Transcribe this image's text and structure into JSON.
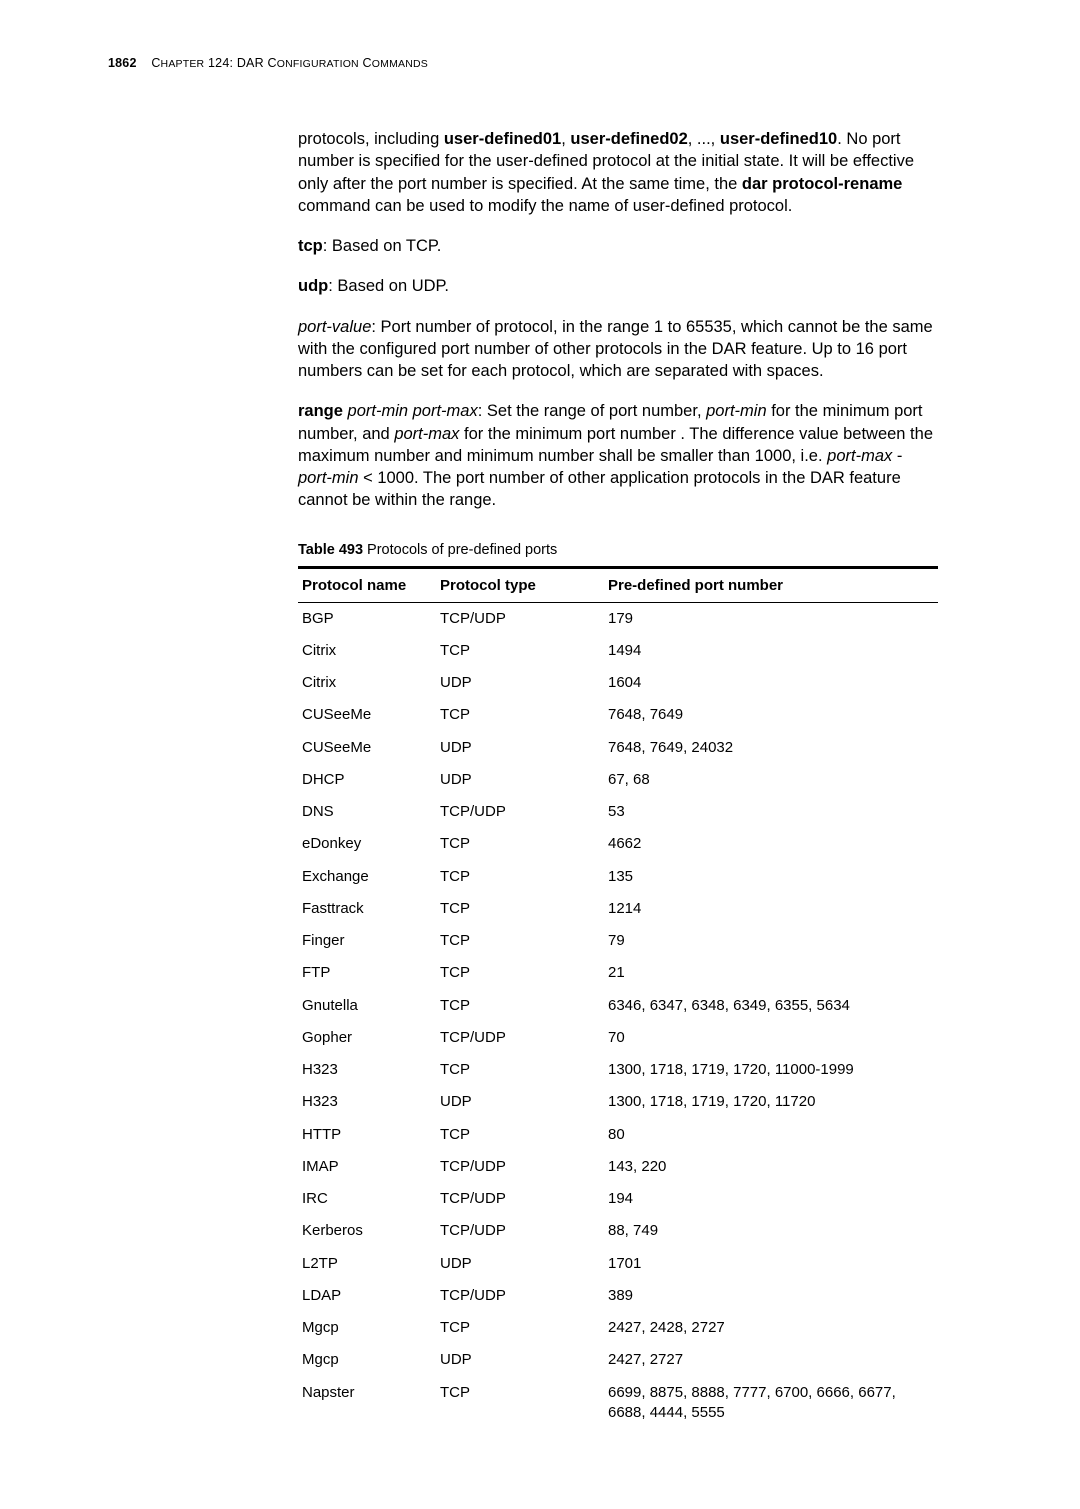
{
  "header": {
    "pagenum": "1862",
    "chapter_word": "C",
    "chapter_rest": "HAPTER",
    "chapter_num": " 124: DAR C",
    "chapter_rest2": "ONFIGURATION",
    "chapter_word2": " C",
    "chapter_rest3": "OMMANDS"
  },
  "p1": {
    "t1": "protocols, including ",
    "b1": "user-defined01",
    "t2": ", ",
    "b2": "user-defined02",
    "t3": ", ..., ",
    "b3": "user-defined10",
    "t4": ". No port number is specified for the user-defined protocol at the initial state. It will be effective only after the port number is specified. At the same time, the ",
    "b4": "dar protocol-rename",
    "t5": " command can be used to modify the name of user-defined protocol."
  },
  "p2": {
    "b1": "tcp",
    "t1": ": Based on TCP."
  },
  "p3": {
    "b1": "udp",
    "t1": ": Based on UDP."
  },
  "p4": {
    "i1": "port-value",
    "t1": ": Port number of protocol, in the range 1 to 65535, which cannot be the same with the configured port number of other protocols in the DAR feature. Up to 16 port numbers can be set for each protocol, which are separated with spaces."
  },
  "p5": {
    "b1": "range",
    "i1": " port-min port-max",
    "t1": ": Set the range of port number, ",
    "i2": "port-min",
    "t2": " for the minimum port number, and ",
    "i3": "port-max",
    "t3": " for the minimum port number . The difference value between the maximum number and minimum number shall be smaller than 1000, i.e. ",
    "i4": "port-max",
    "t4": " - ",
    "i5": "port-min",
    "t5": " < 1000. The port number of other application protocols in the DAR feature cannot be within the range."
  },
  "table": {
    "caption_bold": "Table 493",
    "caption_rest": "   Protocols of pre-defined ports",
    "columns": [
      "Protocol name",
      "Protocol type",
      "Pre-defined port number"
    ],
    "rows": [
      [
        "BGP",
        "TCP/UDP",
        "179"
      ],
      [
        "Citrix",
        "TCP",
        "1494"
      ],
      [
        "Citrix",
        "UDP",
        "1604"
      ],
      [
        "CUSeeMe",
        "TCP",
        "7648, 7649"
      ],
      [
        "CUSeeMe",
        "UDP",
        "7648, 7649, 24032"
      ],
      [
        "DHCP",
        "UDP",
        "67, 68"
      ],
      [
        "DNS",
        "TCP/UDP",
        "53"
      ],
      [
        "eDonkey",
        "TCP",
        "4662"
      ],
      [
        "Exchange",
        "TCP",
        "135"
      ],
      [
        "Fasttrack",
        "TCP",
        "1214"
      ],
      [
        "Finger",
        "TCP",
        "79"
      ],
      [
        "FTP",
        "TCP",
        "21"
      ],
      [
        "Gnutella",
        "TCP",
        "6346, 6347, 6348, 6349, 6355, 5634"
      ],
      [
        "Gopher",
        "TCP/UDP",
        "70"
      ],
      [
        "H323",
        "TCP",
        "1300, 1718, 1719, 1720, 11000-1999"
      ],
      [
        "H323",
        "UDP",
        "1300, 1718, 1719, 1720, 11720"
      ],
      [
        "HTTP",
        "TCP",
        "80"
      ],
      [
        "IMAP",
        "TCP/UDP",
        "143, 220"
      ],
      [
        "IRC",
        "TCP/UDP",
        "194"
      ],
      [
        "Kerberos",
        "TCP/UDP",
        "88, 749"
      ],
      [
        "L2TP",
        "UDP",
        "1701"
      ],
      [
        "LDAP",
        "TCP/UDP",
        "389"
      ],
      [
        "Mgcp",
        "TCP",
        "2427, 2428, 2727"
      ],
      [
        "Mgcp",
        "UDP",
        "2427, 2727"
      ],
      [
        "Napster",
        "TCP",
        "6699, 8875, 8888, 7777, 6700, 6666, 6677, 6688, 4444, 5555"
      ]
    ]
  }
}
